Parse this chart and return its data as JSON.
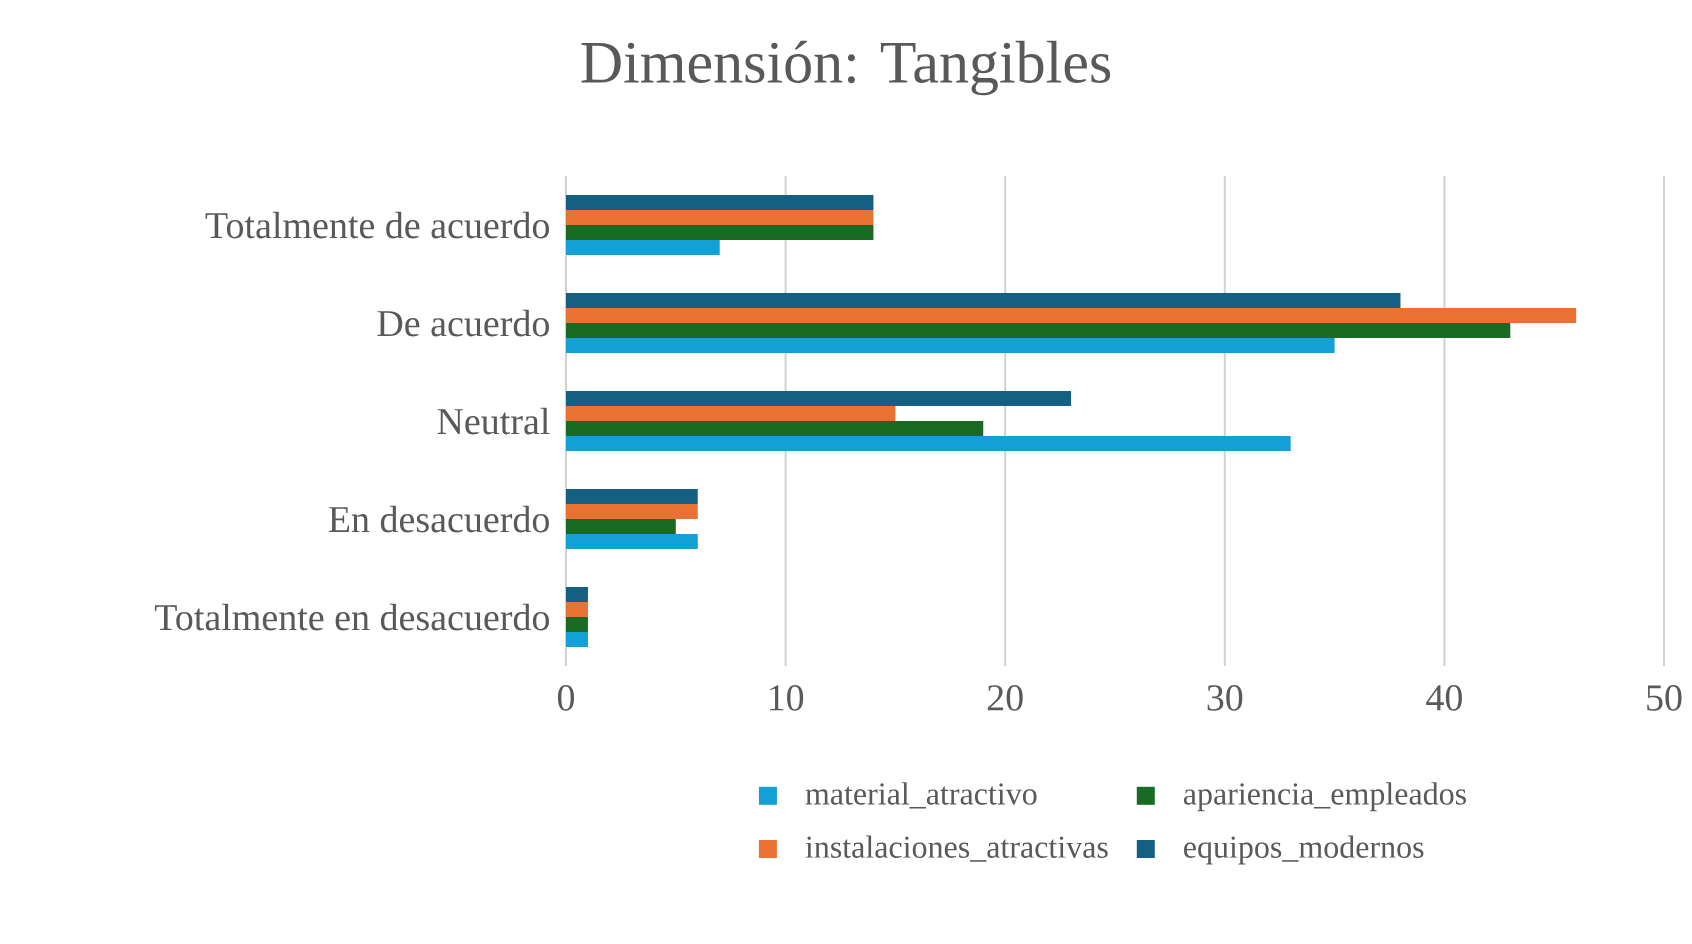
{
  "chart_data": {
    "type": "bar",
    "orientation": "horizontal",
    "title": "Dimensión: Tangibles",
    "categories": [
      "Totalmente de acuerdo",
      "De acuerdo",
      "Neutral",
      "En desacuerdo",
      "Totalmente en desacuerdo"
    ],
    "series": [
      {
        "name": "material_atractivo",
        "color": "#12a0d7",
        "values": [
          7,
          35,
          33,
          6,
          1
        ]
      },
      {
        "name": "apariencia_empleados",
        "color": "#196b24",
        "values": [
          14,
          43,
          19,
          5,
          1
        ]
      },
      {
        "name": "instalaciones_atractivas",
        "color": "#e97132",
        "values": [
          14,
          46,
          15,
          6,
          1
        ]
      },
      {
        "name": "equipos_modernos",
        "color": "#156082",
        "values": [
          14,
          38,
          23,
          6,
          1
        ]
      }
    ],
    "xlim": [
      0,
      50
    ],
    "xticks": [
      0,
      10,
      20,
      30,
      40,
      50
    ],
    "grid": "x",
    "legend": "bottom"
  }
}
